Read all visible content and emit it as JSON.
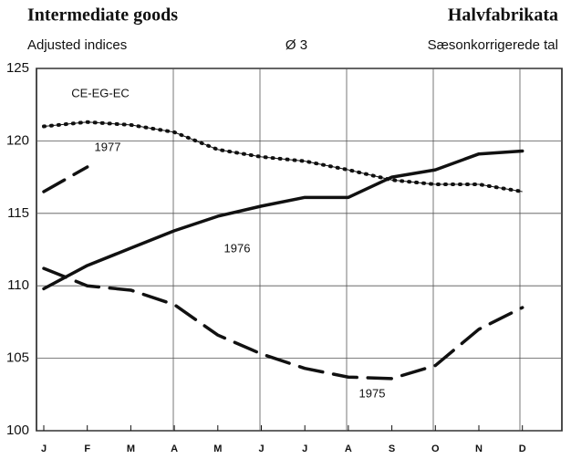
{
  "chart_data": {
    "type": "line",
    "title": "Intermediate goods",
    "title_right": "Halvfabrikata",
    "subtitle": "Adjusted indices",
    "subtitle_center": "Ø 3",
    "subtitle_right": "Sæsonkorrigerede tal",
    "categories": [
      "J",
      "F",
      "M",
      "A",
      "M",
      "J",
      "J",
      "A",
      "S",
      "O",
      "N",
      "D"
    ],
    "series": [
      {
        "name": "CE-EG-EC",
        "color": "#111111",
        "style": "dotted",
        "values": [
          121.0,
          121.3,
          121.1,
          120.6,
          119.4,
          118.9,
          118.6,
          118.0,
          117.3,
          117.0,
          117.0,
          116.5
        ]
      },
      {
        "name": "1977",
        "color": "#111111",
        "style": "dashed",
        "values": [
          116.5,
          118.2,
          null,
          null,
          null,
          null,
          null,
          null,
          null,
          null,
          null,
          null
        ]
      },
      {
        "name": "1976",
        "color": "#111111",
        "style": "solid",
        "values": [
          109.8,
          111.4,
          112.6,
          113.8,
          114.8,
          115.5,
          116.1,
          116.1,
          117.5,
          118.0,
          119.1,
          119.3
        ]
      },
      {
        "name": "1975",
        "color": "#111111",
        "style": "dashed",
        "values": [
          111.2,
          110.0,
          109.7,
          108.7,
          106.6,
          105.3,
          104.3,
          103.7,
          103.6,
          104.5,
          107.0,
          108.5
        ]
      }
    ],
    "ylim": [
      100,
      125
    ],
    "yticks": [
      100,
      105,
      110,
      115,
      120,
      125
    ],
    "grid": true
  }
}
